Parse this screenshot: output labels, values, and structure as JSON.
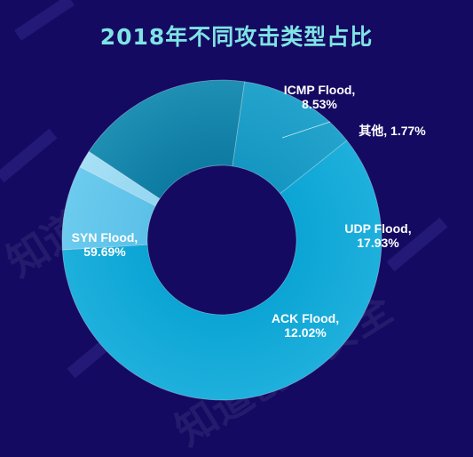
{
  "title": "2018年不同攻击类型占比",
  "watermark_text": "知道创宇安全",
  "chart_data": {
    "type": "pie",
    "variant": "donut",
    "title": "2018年不同攻击类型占比",
    "slices": [
      {
        "name": "SYN Flood",
        "value": 59.69,
        "label_line1": "SYN Flood,",
        "label_line2": "59.69%",
        "color_outer": "#1fb0dc",
        "color_inner": "#0aa4d4"
      },
      {
        "name": "ICMP Flood",
        "value": 8.53,
        "label_line1": "ICMP Flood,",
        "label_line2": "8.53%",
        "color_outer": "#6ccbee",
        "color_inner": "#5bc0e8"
      },
      {
        "name": "其他",
        "value": 1.77,
        "label_line1": "其他, 1.77%",
        "label_line2": "",
        "color_outer": "#a7e0f5",
        "color_inner": "#94d6f1"
      },
      {
        "name": "UDP Flood",
        "value": 17.93,
        "label_line1": "UDP Flood,",
        "label_line2": "17.93%",
        "color_outer": "#1f8fb3",
        "color_inner": "#0d7aa1"
      },
      {
        "name": "ACK Flood",
        "value": 12.02,
        "label_line1": "ACK Flood,",
        "label_line2": "12.02%",
        "color_outer": "#24a4cc",
        "color_inner": "#1496c2"
      }
    ]
  }
}
